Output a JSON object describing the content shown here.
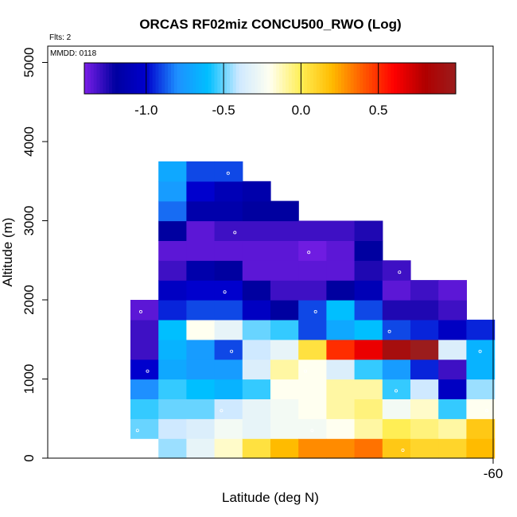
{
  "chart_data": {
    "type": "heatmap",
    "title": "ORCAS RF02miz CONCU500_RWO (Log)",
    "flights_label": "Flts: 2",
    "date_label": "MMDD: 0118",
    "xlabel": "Latitude (deg N)",
    "ylabel": "Altitude (m)",
    "x_tick_labels": [
      "-60"
    ],
    "y_tick_labels": [
      "0",
      "1000",
      "2000",
      "3000",
      "4000",
      "5000"
    ],
    "y_ticks": [
      0,
      1000,
      2000,
      3000,
      4000,
      5000
    ],
    "ylim": [
      0,
      5200
    ],
    "colorbar": {
      "range": [
        -1.4,
        1.0
      ],
      "tick_values": [
        -1.0,
        -0.5,
        0.0,
        0.5
      ],
      "tick_labels": [
        "-1.0",
        "-0.5",
        "0.0",
        "0.5"
      ],
      "color_stops": [
        "#7b1fe8",
        "#0000a0",
        "#0000cd",
        "#1e90ff",
        "#00bfff",
        "#cfe9ff",
        "#fffff0",
        "#ffee55",
        "#ffbb00",
        "#ff5a00",
        "#ff0000",
        "#b00000",
        "#9b1c1c"
      ]
    },
    "bin_height_m": 250,
    "n_columns": 13,
    "columns": [
      {
        "bottom": 250,
        "values": [
          -0.5,
          -0.55,
          -0.8,
          -1.0,
          -1.3,
          -1.3,
          -1.35
        ]
      },
      {
        "bottom": 0,
        "values": [
          -0.45,
          -0.4,
          -0.5,
          -0.55,
          -0.7,
          -0.65,
          -0.6,
          -0.95,
          -1.05,
          -1.3,
          -1.35,
          -1.2,
          -0.85,
          -0.75,
          -0.7
        ]
      },
      {
        "bottom": 0,
        "values": [
          -0.3,
          -0.35,
          -0.5,
          -0.6,
          -0.75,
          -0.75,
          -0.2,
          -0.9,
          -1.0,
          -1.15,
          -1.35,
          -1.35,
          -1.15,
          -1.0,
          -0.9
        ]
      },
      {
        "bottom": 0,
        "values": [
          -0.15,
          -0.25,
          -0.4,
          -0.65,
          -0.75,
          -0.9,
          -0.3,
          -0.9,
          -1.0,
          -1.2,
          -1.35,
          -1.3,
          -1.15,
          -1.1,
          -0.9
        ]
      },
      {
        "bottom": 0,
        "values": [
          0.05,
          -0.3,
          -0.3,
          -0.55,
          -0.35,
          -0.4,
          -0.5,
          -1.05,
          -1.2,
          -1.35,
          -1.35,
          -1.3,
          -1.2,
          -1.15
        ]
      },
      {
        "bottom": 0,
        "values": [
          0.2,
          -0.25,
          -0.25,
          -0.2,
          -0.1,
          -0.3,
          -0.55,
          -1.2,
          -1.3,
          -1.35,
          -1.35,
          -1.3,
          -1.2
        ]
      },
      {
        "bottom": 0,
        "values": [
          0.3,
          -0.25,
          -0.2,
          -0.2,
          -0.2,
          0.05,
          -0.9,
          -0.9,
          -1.3,
          -1.35,
          -1.38,
          -1.3
        ]
      },
      {
        "bottom": 0,
        "values": [
          0.3,
          -0.2,
          -0.1,
          -0.1,
          -0.35,
          0.5,
          -0.7,
          -0.6,
          -1.2,
          -1.35,
          -1.35,
          -1.3
        ]
      },
      {
        "bottom": 0,
        "values": [
          0.35,
          -0.1,
          -0.05,
          -0.1,
          -0.55,
          0.65,
          -0.6,
          -0.9,
          -1.1,
          -1.25,
          -1.2,
          -1.25
        ]
      },
      {
        "bottom": 0,
        "values": [
          0.15,
          0.0,
          -0.25,
          -0.55,
          -0.75,
          0.9,
          -0.9,
          -1.25,
          -1.35,
          -1.3
        ]
      },
      {
        "bottom": 0,
        "values": [
          0.1,
          -0.05,
          -0.15,
          -0.4,
          -0.95,
          1.0,
          -0.95,
          -1.25,
          -1.3
        ]
      },
      {
        "bottom": 0,
        "values": [
          0.1,
          -0.1,
          -0.55,
          -1.05,
          -1.3,
          -0.35,
          -1.05,
          -1.3,
          -1.35
        ]
      },
      {
        "bottom": 0,
        "values": [
          0.2,
          0.15,
          -0.2,
          -0.45,
          -0.65,
          -0.65,
          -0.95
        ]
      }
    ]
  }
}
